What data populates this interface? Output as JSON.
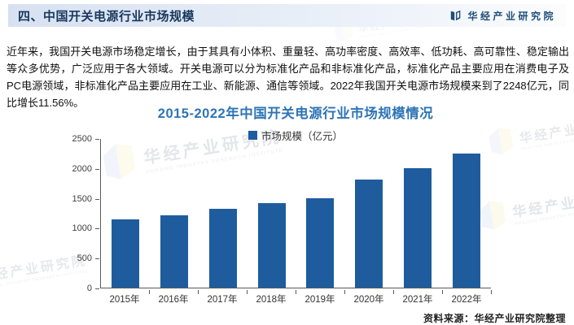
{
  "page": {
    "header": {
      "title": "四、中国开关电源行业市场规模",
      "brand": "华经产业研究院"
    },
    "paragraph": "近年来，我国开关电源市场稳定增长，由于其具有小体积、重量轻、高功率密度、高效率、低功耗、高可靠性、稳定输出等众多优势，广泛应用于各大领域。开关电源可以分为标准化产品和非标准化产品，标准化产品主要应用在消费电子及PC电源领域，非标准化产品主要应用在工业、新能源、通信等领域。2022年我国开关电源市场规模来到了2248亿元，同比增长11.56%。",
    "source_note": "资料来源：华经产业研究院整理",
    "watermark": {
      "cn": "华经产业研究院",
      "en": "HUAJING INDUSTRY RESEARCH INSTITUTE"
    }
  },
  "chart_data": {
    "type": "bar",
    "title": "2015-2022年中国开关电源行业市场规模情况",
    "legend": [
      "市场规模（亿元）"
    ],
    "legend_position": "top",
    "categories": [
      "2015年",
      "2016年",
      "2017年",
      "2018年",
      "2019年",
      "2020年",
      "2021年",
      "2022年"
    ],
    "values": [
      1146,
      1214,
      1321,
      1419,
      1500,
      1823,
      2015,
      2248
    ],
    "xlabel": "",
    "ylabel": "",
    "ylim": [
      0,
      2500
    ],
    "ytick_step": 500,
    "grid": false,
    "bar_color": "#1f5c9e"
  },
  "colors": {
    "bar": "#1f5c9e",
    "chart_title": "#2e74b5",
    "header_text": "#17375d",
    "header_bg": "#d7e1f1",
    "brand_text": "#1f4e79",
    "axis": "#595959"
  }
}
